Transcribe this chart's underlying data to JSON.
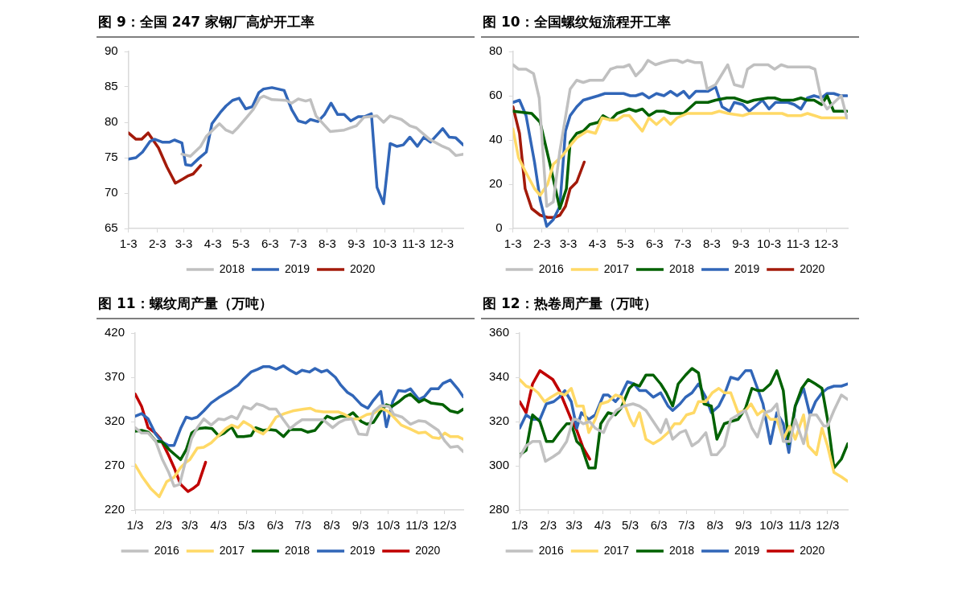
{
  "chart_data": [
    {
      "type": "line",
      "title": "图 9：全国 247 家钢厂高炉开工率",
      "xlim": [
        "--01-03",
        "--12-26"
      ],
      "xticks": [
        {
          "value": "--01-03",
          "label": "1-3"
        },
        {
          "value": "--02-03",
          "label": "2-3"
        },
        {
          "value": "--03-03",
          "label": "3-3"
        },
        {
          "value": "--04-03",
          "label": "4-3"
        },
        {
          "value": "--05-03",
          "label": "5-3"
        },
        {
          "value": "--06-03",
          "label": "6-3"
        },
        {
          "value": "--07-03",
          "label": "7-3"
        },
        {
          "value": "--08-03",
          "label": "8-3"
        },
        {
          "value": "--09-03",
          "label": "9-3"
        },
        {
          "value": "--10-03",
          "label": "10-3"
        },
        {
          "value": "--11-03",
          "label": "11-3"
        },
        {
          "value": "--12-03",
          "label": "12-3"
        }
      ],
      "ylim": [
        65,
        90
      ],
      "yticks": [
        65,
        70,
        75,
        80,
        85,
        90
      ],
      "grid": false,
      "legend": "bottom",
      "marker": "none",
      "line_style": "solid",
      "series": [
        {
          "name": "2018",
          "color": "#c0c0c0",
          "x": [
            "--03-01",
            "--03-10",
            "--03-21",
            "--03-27",
            "--04-10",
            "--04-17",
            "--04-24",
            "--04-30",
            "--05-09",
            "--05-16",
            "--05-23",
            "--05-27",
            "--06-05",
            "--06-20",
            "--06-26",
            "--07-03",
            "--07-11",
            "--07-16",
            "--07-22",
            "--08-06",
            "--08-21",
            "--09-03",
            "--09-11",
            "--09-25",
            "--10-02",
            "--10-09",
            "--10-21",
            "--10-30",
            "--11-06",
            "--11-20",
            "--12-04",
            "--12-11",
            "--12-18",
            "--12-26"
          ],
          "values": [
            75.5,
            75.2,
            76.6,
            78,
            79.8,
            78.9,
            78.5,
            79.3,
            80.7,
            81.8,
            83.4,
            83.7,
            83.2,
            83.1,
            82.7,
            83.3,
            83,
            83.2,
            80.9,
            78.7,
            78.9,
            79.5,
            80.7,
            80.9,
            80,
            80.9,
            80.4,
            79.5,
            79.2,
            77.6,
            76.6,
            76.2,
            75.3,
            75.5
          ]
        },
        {
          "name": "2019",
          "color": "#3166b8",
          "x": [
            "--01-03",
            "--01-11",
            "--01-18",
            "--01-26",
            "--01-31",
            "--02-08",
            "--02-16",
            "--02-21",
            "--03-01",
            "--03-05",
            "--03-11",
            "--03-19",
            "--03-27",
            "--04-02",
            "--04-11",
            "--04-17",
            "--04-24",
            "--05-01",
            "--05-08",
            "--05-15",
            "--05-22",
            "--05-27",
            "--06-05",
            "--06-18",
            "--06-26",
            "--07-03",
            "--07-11",
            "--07-16",
            "--07-24",
            "--07-31",
            "--08-07",
            "--08-14",
            "--08-21",
            "--08-28",
            "--09-05",
            "--09-12",
            "--09-19",
            "--09-25",
            "--10-02",
            "--10-09",
            "--10-16",
            "--10-23",
            "--10-30",
            "--11-07",
            "--11-14",
            "--11-21",
            "--12-04",
            "--12-11",
            "--12-18",
            "--12-26"
          ],
          "values": [
            74.8,
            75,
            75.8,
            77.3,
            77.6,
            77.2,
            77.2,
            77.5,
            77.1,
            74,
            73.9,
            74.9,
            75.8,
            79.8,
            81.4,
            82.3,
            83.1,
            83.4,
            81.9,
            82.2,
            84.2,
            84.7,
            84.9,
            84.5,
            81.8,
            80.2,
            79.9,
            80.4,
            80.1,
            81.1,
            82.7,
            81.1,
            81.1,
            80.2,
            80.8,
            80.8,
            81.2,
            70.8,
            68.5,
            77,
            76.6,
            76.8,
            77.9,
            76.6,
            77.9,
            77.2,
            79.1,
            77.9,
            77.8,
            76.8
          ]
        },
        {
          "name": "2020",
          "color": "#a31a0a",
          "x": [
            "--01-03",
            "--01-11",
            "--01-17",
            "--01-24",
            "--02-04",
            "--02-13",
            "--02-22",
            "--03-02",
            "--03-07",
            "--03-13",
            "--03-21"
          ],
          "values": [
            78.5,
            77.6,
            77.6,
            78.5,
            76.4,
            73.7,
            71.4,
            72,
            72.4,
            72.7,
            73.9
          ]
        }
      ]
    },
    {
      "type": "line",
      "title": "图 10：全国螺纹短流程开工率",
      "xlim": [
        "--01-03",
        "--12-26"
      ],
      "xticks": [
        {
          "value": "--01-03",
          "label": "1-3"
        },
        {
          "value": "--02-03",
          "label": "2-3"
        },
        {
          "value": "--03-03",
          "label": "3-3"
        },
        {
          "value": "--04-03",
          "label": "4-3"
        },
        {
          "value": "--05-03",
          "label": "5-3"
        },
        {
          "value": "--06-03",
          "label": "6-3"
        },
        {
          "value": "--07-03",
          "label": "7-3"
        },
        {
          "value": "--08-03",
          "label": "8-3"
        },
        {
          "value": "--09-03",
          "label": "9-3"
        },
        {
          "value": "--10-03",
          "label": "10-3"
        },
        {
          "value": "--11-03",
          "label": "11-3"
        },
        {
          "value": "--12-03",
          "label": "12-3"
        }
      ],
      "ylim": [
        0,
        80
      ],
      "yticks": [
        0,
        20,
        40,
        60,
        80
      ],
      "grid": false,
      "legend": "bottom",
      "marker": "none",
      "line_style": "solid",
      "series": [
        {
          "name": "2016",
          "color": "#c0c0c0",
          "x": [
            "--01-03",
            "--01-09",
            "--01-17",
            "--01-25",
            "--01-31",
            "--02-08",
            "--02-15",
            "--02-22",
            "--03-05",
            "--03-12",
            "--03-19",
            "--03-26",
            "--04-09",
            "--04-17",
            "--04-24",
            "--05-01",
            "--05-07",
            "--05-14",
            "--05-21",
            "--05-27",
            "--06-04",
            "--06-11",
            "--06-20",
            "--06-27",
            "--07-03",
            "--07-08",
            "--07-16",
            "--07-23",
            "--07-29",
            "--08-07",
            "--08-20",
            "--08-27",
            "--09-05",
            "--09-10",
            "--09-17",
            "--10-02",
            "--10-09",
            "--10-16",
            "--10-23",
            "--11-15",
            "--11-21",
            "--11-28",
            "--12-04",
            "--12-19",
            "--12-25"
          ],
          "values": [
            74,
            72,
            72,
            70,
            59,
            10,
            12,
            35,
            63,
            67,
            66,
            67,
            67,
            72,
            73,
            73,
            74,
            69,
            72,
            76,
            74,
            75,
            76,
            76,
            75,
            76,
            75,
            75,
            63,
            65,
            74,
            65,
            64,
            72,
            74,
            74,
            72,
            74,
            73,
            73,
            72,
            58,
            54,
            60,
            50
          ]
        },
        {
          "name": "2017",
          "color": "#ffd966",
          "x": [
            "--01-03",
            "--01-09",
            "--01-16",
            "--01-26",
            "--02-01",
            "--02-09",
            "--02-15",
            "--02-25",
            "--03-04",
            "--03-12",
            "--03-23",
            "--04-01",
            "--04-08",
            "--04-17",
            "--04-24",
            "--05-01",
            "--05-07",
            "--05-21",
            "--05-28",
            "--06-05",
            "--06-13",
            "--06-20",
            "--06-27",
            "--07-08",
            "--08-03",
            "--08-11",
            "--08-20",
            "--09-05",
            "--09-12",
            "--10-17",
            "--10-23",
            "--11-06",
            "--11-13",
            "--11-28",
            "--12-25"
          ],
          "values": [
            45,
            32,
            26,
            18,
            15,
            20,
            29,
            33,
            37,
            41,
            44,
            43,
            50,
            49,
            49,
            51,
            51,
            44,
            50,
            47,
            50,
            47,
            50,
            52,
            52,
            53,
            52,
            51,
            52,
            52,
            51,
            51,
            52,
            50,
            50
          ]
        },
        {
          "name": "2018",
          "color": "#006100",
          "x": [
            "--01-03",
            "--01-23",
            "--02-01",
            "--02-11",
            "--02-22",
            "--03-01",
            "--03-05",
            "--03-12",
            "--03-19",
            "--03-26",
            "--04-04",
            "--04-09",
            "--04-17",
            "--04-24",
            "--05-07",
            "--05-14",
            "--05-21",
            "--05-28",
            "--06-05",
            "--06-13",
            "--06-20",
            "--07-04",
            "--07-17",
            "--07-30",
            "--08-07",
            "--08-19",
            "--08-27",
            "--09-10",
            "--09-17",
            "--10-02",
            "--10-09",
            "--10-16",
            "--10-29",
            "--11-06",
            "--11-13",
            "--11-20",
            "--11-28",
            "--12-04",
            "--12-11",
            "--12-25"
          ],
          "values": [
            53,
            52,
            48,
            30,
            9,
            18,
            39,
            43,
            44,
            47,
            48,
            51,
            49,
            52,
            54,
            53,
            54,
            51,
            53,
            53,
            52,
            52,
            57,
            57,
            58,
            59,
            59,
            57,
            58,
            59,
            59,
            58,
            58,
            59,
            58,
            58,
            56,
            60,
            53,
            53
          ]
        },
        {
          "name": "2019",
          "color": "#3166b8",
          "x": [
            "--01-03",
            "--01-10",
            "--01-17",
            "--01-26",
            "--02-01",
            "--02-08",
            "--02-15",
            "--02-22",
            "--02-28",
            "--03-05",
            "--03-12",
            "--03-19",
            "--04-04",
            "--04-11",
            "--05-01",
            "--05-08",
            "--05-14",
            "--05-21",
            "--05-28",
            "--06-05",
            "--06-13",
            "--06-20",
            "--06-27",
            "--07-04",
            "--07-10",
            "--07-17",
            "--07-30",
            "--08-07",
            "--08-14",
            "--08-22",
            "--08-27",
            "--09-05",
            "--09-12",
            "--09-26",
            "--10-03",
            "--10-10",
            "--10-23",
            "--10-30",
            "--11-06",
            "--11-13",
            "--11-20",
            "--11-28",
            "--12-04",
            "--12-11",
            "--12-18",
            "--12-25"
          ],
          "values": [
            57,
            58,
            51,
            30,
            13,
            1,
            4,
            10,
            44,
            51,
            55,
            58,
            60,
            61,
            61,
            60,
            60,
            61,
            59,
            61,
            60,
            62,
            60,
            62,
            59,
            62,
            62,
            64,
            55,
            53,
            57,
            56,
            53,
            58,
            54,
            57,
            57,
            56,
            54,
            59,
            60,
            59,
            61,
            61,
            60,
            60
          ]
        },
        {
          "name": "2020",
          "color": "#a31a0a",
          "x": [
            "--01-03",
            "--01-10",
            "--01-16",
            "--01-23",
            "--02-01",
            "--02-09",
            "--02-16",
            "--02-22",
            "--02-28",
            "--03-05",
            "--03-12",
            "--03-20"
          ],
          "values": [
            55,
            43,
            18,
            9,
            6,
            5,
            5,
            6,
            10,
            18,
            21,
            30
          ]
        }
      ]
    },
    {
      "type": "line",
      "title": "图 11：螺纹周产量（万吨）",
      "xlim": [
        "--01-03",
        "--12-23"
      ],
      "xticks": [
        {
          "value": "--01-03",
          "label": "1/3"
        },
        {
          "value": "--02-03",
          "label": "2/3"
        },
        {
          "value": "--03-03",
          "label": "3/3"
        },
        {
          "value": "--04-03",
          "label": "4/3"
        },
        {
          "value": "--05-03",
          "label": "5/3"
        },
        {
          "value": "--06-03",
          "label": "6/3"
        },
        {
          "value": "--07-03",
          "label": "7/3"
        },
        {
          "value": "--08-03",
          "label": "8/3"
        },
        {
          "value": "--09-03",
          "label": "9/3"
        },
        {
          "value": "--10-03",
          "label": "10/3"
        },
        {
          "value": "--11-03",
          "label": "11/3"
        },
        {
          "value": "--12-03",
          "label": "12/3"
        }
      ],
      "ylim": [
        220,
        420
      ],
      "yticks": [
        220,
        270,
        320,
        370,
        420
      ],
      "grid": false,
      "legend": "bottom",
      "marker": "none",
      "line_style": "solid",
      "series": [
        {
          "name": "2016",
          "color": "#c0c0c0",
          "x": [
            "--01-03",
            "--01-10",
            "--01-17",
            "--01-25",
            "--02-01",
            "--02-08",
            "--02-14",
            "--02-20",
            "--02-27",
            "--03-05",
            "--03-11",
            "--03-18",
            "--03-26",
            "--04-03",
            "--04-09",
            "--04-17",
            "--04-23",
            "--04-30",
            "--05-08",
            "--05-14",
            "--05-21",
            "--05-28",
            "--06-04",
            "--06-12",
            "--06-19",
            "--06-25",
            "--07-02",
            "--07-10",
            "--07-25",
            "--08-04",
            "--08-11",
            "--08-17",
            "--08-25",
            "--09-01",
            "--09-10",
            "--09-17",
            "--09-25",
            "--10-04",
            "--10-09",
            "--10-18",
            "--10-27",
            "--11-05",
            "--11-12",
            "--11-26",
            "--12-03",
            "--12-09",
            "--12-17",
            "--12-23"
          ],
          "values": [
            313,
            307,
            307,
            298,
            278,
            263,
            247,
            249,
            278,
            301,
            313,
            323,
            316,
            323,
            322,
            326,
            323,
            337,
            334,
            340,
            338,
            334,
            334,
            322,
            312,
            317,
            322,
            322,
            322,
            313,
            319,
            322,
            323,
            306,
            305,
            331,
            338,
            337,
            328,
            325,
            317,
            321,
            320,
            310,
            298,
            291,
            292,
            286
          ]
        },
        {
          "name": "2017",
          "color": "#ffd966",
          "x": [
            "--01-03",
            "--01-11",
            "--01-20",
            "--01-29",
            "--02-06",
            "--02-14",
            "--02-21",
            "--02-27",
            "--03-03",
            "--03-11",
            "--03-18",
            "--03-26",
            "--04-03",
            "--04-11",
            "--04-17",
            "--04-24",
            "--04-30",
            "--05-08",
            "--05-13",
            "--05-21",
            "--05-27",
            "--06-04",
            "--06-13",
            "--06-22",
            "--07-04",
            "--07-11",
            "--07-17",
            "--07-25",
            "--08-10",
            "--08-17",
            "--08-25",
            "--09-01",
            "--09-10",
            "--09-17",
            "--09-25",
            "--10-02",
            "--10-09",
            "--10-17",
            "--10-26",
            "--11-05",
            "--11-12",
            "--11-20",
            "--11-27",
            "--12-03",
            "--12-09",
            "--12-17",
            "--12-23"
          ],
          "values": [
            271,
            257,
            244,
            235,
            252,
            257,
            268,
            274,
            277,
            290,
            291,
            296,
            304,
            312,
            316,
            313,
            320,
            315,
            310,
            306,
            312,
            325,
            329,
            332,
            334,
            335,
            332,
            331,
            331,
            328,
            323,
            323,
            328,
            329,
            335,
            332,
            325,
            316,
            312,
            307,
            308,
            302,
            301,
            307,
            303,
            303,
            300
          ]
        },
        {
          "name": "2018",
          "color": "#006100",
          "x": [
            "--01-03",
            "--01-10",
            "--01-17",
            "--01-25",
            "--02-01",
            "--02-09",
            "--02-21",
            "--02-27",
            "--03-05",
            "--03-12",
            "--03-20",
            "--03-27",
            "--04-03",
            "--04-09",
            "--04-17",
            "--04-23",
            "--04-30",
            "--05-08",
            "--05-13",
            "--05-21",
            "--05-28",
            "--06-04",
            "--06-12",
            "--06-19",
            "--07-01",
            "--07-08",
            "--07-16",
            "--07-23",
            "--07-29",
            "--08-05",
            "--08-13",
            "--08-20",
            "--08-26",
            "--09-04",
            "--09-10",
            "--09-17",
            "--09-25",
            "--10-01",
            "--10-07",
            "--10-14",
            "--10-21",
            "--10-27",
            "--11-05",
            "--11-11",
            "--11-18",
            "--12-01",
            "--12-09",
            "--12-17",
            "--12-23"
          ],
          "values": [
            309,
            310,
            308,
            298,
            297,
            288,
            277,
            288,
            307,
            312,
            313,
            312,
            304,
            307,
            314,
            303,
            303,
            304,
            313,
            310,
            311,
            310,
            303,
            311,
            311,
            308,
            310,
            319,
            326,
            323,
            326,
            326,
            330,
            320,
            317,
            319,
            332,
            339,
            337,
            342,
            348,
            351,
            342,
            345,
            341,
            339,
            332,
            330,
            334
          ]
        },
        {
          "name": "2019",
          "color": "#3166b8",
          "x": [
            "--01-03",
            "--01-10",
            "--01-17",
            "--01-25",
            "--02-01",
            "--02-08",
            "--02-14",
            "--02-21",
            "--02-27",
            "--03-05",
            "--03-11",
            "--03-18",
            "--03-26",
            "--04-03",
            "--04-11",
            "--04-17",
            "--04-24",
            "--04-30",
            "--05-08",
            "--05-15",
            "--05-21",
            "--05-28",
            "--06-04",
            "--06-12",
            "--06-19",
            "--06-26",
            "--07-02",
            "--07-10",
            "--07-16",
            "--07-23",
            "--07-29",
            "--08-07",
            "--08-13",
            "--08-20",
            "--08-26",
            "--09-04",
            "--09-11",
            "--09-17",
            "--09-25",
            "--10-01",
            "--10-08",
            "--10-14",
            "--10-21",
            "--10-27",
            "--11-05",
            "--11-11",
            "--11-18",
            "--11-26",
            "--12-01",
            "--12-09",
            "--12-17",
            "--12-23"
          ],
          "values": [
            326,
            329,
            323,
            306,
            297,
            293,
            293,
            312,
            325,
            323,
            325,
            332,
            341,
            347,
            352,
            356,
            361,
            368,
            376,
            379,
            382,
            382,
            379,
            383,
            378,
            374,
            378,
            376,
            380,
            376,
            378,
            370,
            361,
            353,
            349,
            339,
            335,
            344,
            354,
            314,
            343,
            355,
            354,
            357,
            345,
            348,
            357,
            357,
            363,
            367,
            357,
            348
          ]
        },
        {
          "name": "2020",
          "color": "#c00000",
          "x": [
            "--01-03",
            "--01-10",
            "--01-17",
            "--01-25",
            "--01-30",
            "--02-08",
            "--02-14",
            "--02-21",
            "--03-01",
            "--03-06",
            "--03-12",
            "--03-20"
          ],
          "values": [
            351,
            337,
            313,
            307,
            301,
            282,
            268,
            249,
            241,
            244,
            249,
            274
          ]
        }
      ]
    },
    {
      "type": "line",
      "title": "图 12：热卷周产量（万吨）",
      "xlim": [
        "--01-03",
        "--12-25"
      ],
      "xticks": [
        {
          "value": "--01-03",
          "label": "1/3"
        },
        {
          "value": "--02-03",
          "label": "2/3"
        },
        {
          "value": "--03-03",
          "label": "3/3"
        },
        {
          "value": "--04-03",
          "label": "4/3"
        },
        {
          "value": "--05-03",
          "label": "5/3"
        },
        {
          "value": "--06-03",
          "label": "6/3"
        },
        {
          "value": "--07-03",
          "label": "7/3"
        },
        {
          "value": "--08-03",
          "label": "8/3"
        },
        {
          "value": "--09-03",
          "label": "9/3"
        },
        {
          "value": "--10-03",
          "label": "10/3"
        },
        {
          "value": "--11-03",
          "label": "11/3"
        },
        {
          "value": "--12-03",
          "label": "12/3"
        }
      ],
      "ylim": [
        280,
        360
      ],
      "yticks": [
        280,
        300,
        320,
        340,
        360
      ],
      "grid": false,
      "legend": "bottom",
      "marker": "none",
      "line_style": "solid",
      "series": [
        {
          "name": "2016",
          "color": "#c0c0c0",
          "x": [
            "--01-03",
            "--01-10",
            "--01-17",
            "--01-25",
            "--01-31",
            "--02-08",
            "--02-15",
            "--02-23",
            "--03-02",
            "--03-06",
            "--03-13",
            "--03-20",
            "--03-26",
            "--04-04",
            "--04-09",
            "--04-18",
            "--04-26",
            "--05-06",
            "--05-13",
            "--05-20",
            "--05-28",
            "--06-05",
            "--06-11",
            "--06-18",
            "--06-26",
            "--07-02",
            "--07-09",
            "--07-16",
            "--07-24",
            "--07-30",
            "--08-05",
            "--08-13",
            "--08-20",
            "--08-28",
            "--09-05",
            "--09-12",
            "--09-18",
            "--09-26",
            "--10-03",
            "--10-09",
            "--10-16",
            "--10-23",
            "--10-29",
            "--11-07",
            "--11-14",
            "--11-21",
            "--11-29",
            "--12-03",
            "--12-10",
            "--12-18",
            "--12-25"
          ],
          "values": [
            304,
            309,
            311,
            311,
            302,
            304,
            306,
            311,
            321,
            321,
            319,
            320,
            317,
            315,
            320,
            325,
            327,
            328,
            327,
            325,
            320,
            315,
            321,
            312,
            315,
            316,
            309,
            311,
            315,
            305,
            305,
            309,
            321,
            323,
            325,
            317,
            313,
            324,
            325,
            328,
            311,
            311,
            321,
            310,
            323,
            323,
            318,
            318,
            325,
            332,
            330
          ]
        },
        {
          "name": "2017",
          "color": "#ffd966",
          "x": [
            "--01-03",
            "--01-10",
            "--01-17",
            "--01-23",
            "--01-30",
            "--02-06",
            "--02-14",
            "--02-21",
            "--02-28",
            "--03-06",
            "--03-13",
            "--03-19",
            "--03-26",
            "--04-01",
            "--04-09",
            "--04-17",
            "--04-24",
            "--05-03",
            "--05-07",
            "--05-13",
            "--05-20",
            "--05-28",
            "--06-05",
            "--06-13",
            "--06-20",
            "--06-26",
            "--07-03",
            "--07-11",
            "--07-16",
            "--07-24",
            "--07-31",
            "--08-07",
            "--08-13",
            "--08-20",
            "--08-28",
            "--09-05",
            "--09-11",
            "--09-18",
            "--09-24",
            "--10-02",
            "--10-09",
            "--10-16",
            "--10-23",
            "--10-29",
            "--11-07",
            "--11-12",
            "--11-21",
            "--11-27",
            "--12-03",
            "--12-10",
            "--12-18",
            "--12-25"
          ],
          "values": [
            339,
            336,
            335,
            333,
            329,
            331,
            333,
            332,
            335,
            327,
            327,
            315,
            321,
            328,
            329,
            332,
            331,
            321,
            318,
            324,
            312,
            310,
            312,
            315,
            319,
            319,
            323,
            324,
            329,
            329,
            333,
            335,
            333,
            333,
            324,
            325,
            328,
            323,
            325,
            321,
            321,
            312,
            318,
            312,
            323,
            309,
            305,
            317,
            309,
            297,
            295,
            293
          ]
        },
        {
          "name": "2018",
          "color": "#006100",
          "x": [
            "--01-03",
            "--01-10",
            "--01-17",
            "--01-25",
            "--02-01",
            "--02-08",
            "--02-15",
            "--02-23",
            "--02-28",
            "--03-06",
            "--03-11",
            "--03-19",
            "--03-26",
            "--04-01",
            "--04-09",
            "--04-17",
            "--04-23",
            "--05-02",
            "--05-07",
            "--05-13",
            "--05-20",
            "--05-28",
            "--06-05",
            "--06-11",
            "--06-18",
            "--06-24",
            "--07-02",
            "--07-09",
            "--07-16",
            "--07-22",
            "--07-30",
            "--08-05",
            "--08-13",
            "--08-20",
            "--08-28",
            "--09-05",
            "--09-12",
            "--09-18",
            "--09-24",
            "--10-02",
            "--10-09",
            "--10-16",
            "--10-22",
            "--10-29",
            "--11-05",
            "--11-12",
            "--11-20",
            "--11-27",
            "--12-03",
            "--12-10",
            "--12-18",
            "--12-25"
          ],
          "values": [
            305,
            307,
            323,
            320,
            311,
            311,
            315,
            319,
            319,
            311,
            309,
            299,
            299,
            319,
            324,
            323,
            326,
            335,
            337,
            336,
            341,
            341,
            337,
            333,
            327,
            337,
            341,
            344,
            342,
            328,
            327,
            312,
            319,
            320,
            321,
            326,
            335,
            334,
            334,
            337,
            343,
            334,
            310,
            327,
            335,
            339,
            337,
            335,
            321,
            299,
            303,
            310
          ]
        },
        {
          "name": "2019",
          "color": "#3166b8",
          "x": [
            "--01-03",
            "--01-10",
            "--01-17",
            "--01-25",
            "--02-01",
            "--02-09",
            "--02-15",
            "--02-21",
            "--02-28",
            "--03-06",
            "--03-11",
            "--03-19",
            "--03-26",
            "--04-04",
            "--04-09",
            "--04-17",
            "--04-23",
            "--04-30",
            "--05-07",
            "--05-13",
            "--05-20",
            "--05-28",
            "--06-05",
            "--06-13",
            "--06-18",
            "--06-26",
            "--07-02",
            "--07-09",
            "--07-16",
            "--07-24",
            "--07-30",
            "--08-07",
            "--08-13",
            "--08-20",
            "--08-28",
            "--09-05",
            "--09-11",
            "--09-18",
            "--09-24",
            "--10-02",
            "--10-09",
            "--10-16",
            "--10-22",
            "--10-29",
            "--11-07",
            "--11-14",
            "--11-20",
            "--11-27",
            "--12-03",
            "--12-10",
            "--12-18",
            "--12-25"
          ],
          "values": [
            317,
            323,
            321,
            321,
            328,
            329,
            331,
            334,
            329,
            317,
            324,
            321,
            323,
            332,
            332,
            329,
            332,
            338,
            337,
            334,
            334,
            331,
            333,
            327,
            325,
            328,
            331,
            333,
            337,
            331,
            324,
            327,
            332,
            340,
            339,
            343,
            343,
            335,
            328,
            310,
            324,
            319,
            306,
            327,
            335,
            323,
            329,
            333,
            335,
            336,
            336,
            337
          ]
        },
        {
          "name": "2020",
          "color": "#c00000",
          "x": [
            "--01-03",
            "--01-10",
            "--01-17",
            "--01-25",
            "--02-01",
            "--02-08",
            "--02-15",
            "--02-21",
            "--02-28",
            "--03-06",
            "--03-13",
            "--03-20"
          ],
          "values": [
            329,
            324,
            337,
            343,
            341,
            339,
            334,
            328,
            321,
            316,
            308,
            303
          ]
        }
      ]
    }
  ]
}
